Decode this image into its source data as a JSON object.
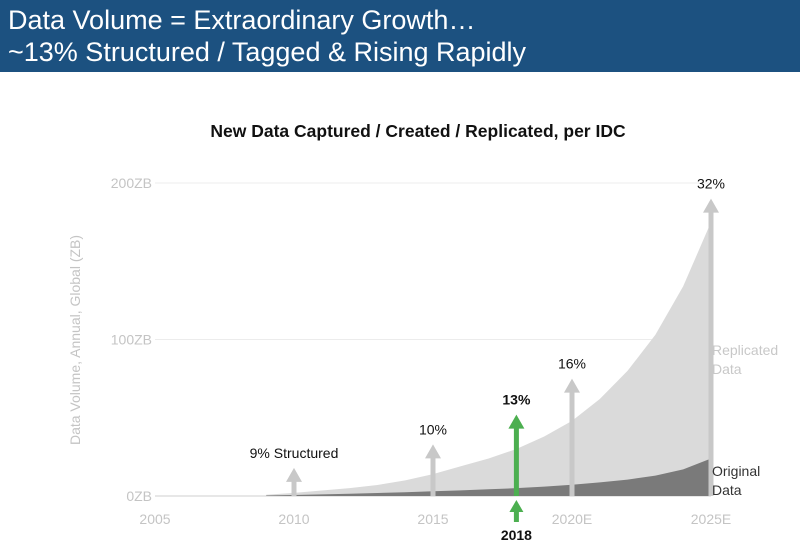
{
  "header": {
    "line1": "Data Volume = Extraordinary Growth…",
    "line2": "~13% Structured / Tagged & Rising Rapidly"
  },
  "chart_data": {
    "type": "area",
    "title": "New Data Captured / Created / Replicated, per IDC",
    "ylabel": "Data Volume, Annual, Global (ZB)",
    "xlabel": "",
    "xlim": [
      2005,
      2025
    ],
    "ylim": [
      0,
      200
    ],
    "x_ticks": [
      {
        "x": 2005,
        "label": "2005"
      },
      {
        "x": 2010,
        "label": "2010"
      },
      {
        "x": 2015,
        "label": "2015"
      },
      {
        "x": 2020,
        "label": "2020E"
      },
      {
        "x": 2025,
        "label": "2025E"
      }
    ],
    "y_ticks": [
      {
        "y": 0,
        "label": "0ZB"
      },
      {
        "y": 100,
        "label": "100ZB"
      },
      {
        "y": 200,
        "label": "200ZB"
      }
    ],
    "highlight_year": {
      "x": 2018,
      "label": "2018"
    },
    "series": [
      {
        "name": "Replicated Data",
        "legend": [
          "Replicated",
          "Data"
        ],
        "color": "#dadada",
        "x": [
          2009,
          2010,
          2011,
          2012,
          2013,
          2014,
          2015,
          2016,
          2017,
          2018,
          2019,
          2020,
          2021,
          2022,
          2023,
          2024,
          2025
        ],
        "values": [
          0.8,
          2,
          3.5,
          5,
          7,
          10,
          14,
          19,
          24,
          30,
          38,
          48,
          62,
          80,
          103,
          134,
          175
        ]
      },
      {
        "name": "Original Data",
        "legend": [
          "Original",
          "Data"
        ],
        "color": "#7a7a7a",
        "x": [
          2009,
          2010,
          2011,
          2012,
          2013,
          2014,
          2015,
          2016,
          2017,
          2018,
          2019,
          2020,
          2021,
          2022,
          2023,
          2024,
          2025
        ],
        "values": [
          0.3,
          0.6,
          1,
          1.4,
          1.9,
          2.4,
          3,
          3.6,
          4.3,
          5,
          6,
          7.2,
          8.7,
          10.5,
          13,
          17,
          24
        ]
      }
    ],
    "annotations": [
      {
        "x": 2010,
        "value": 18,
        "label": "9% Structured",
        "color": "#c8c8c8",
        "bold": false
      },
      {
        "x": 2015,
        "value": 33,
        "label": "10%",
        "color": "#c8c8c8",
        "bold": false
      },
      {
        "x": 2018,
        "value": 52,
        "label": "13%",
        "color": "#4caf50",
        "bold": true
      },
      {
        "x": 2020,
        "value": 75,
        "label": "16%",
        "color": "#c8c8c8",
        "bold": false
      },
      {
        "x": 2025,
        "value": 190,
        "label": "32%",
        "color": "#c8c8c8",
        "bold": false
      }
    ]
  }
}
